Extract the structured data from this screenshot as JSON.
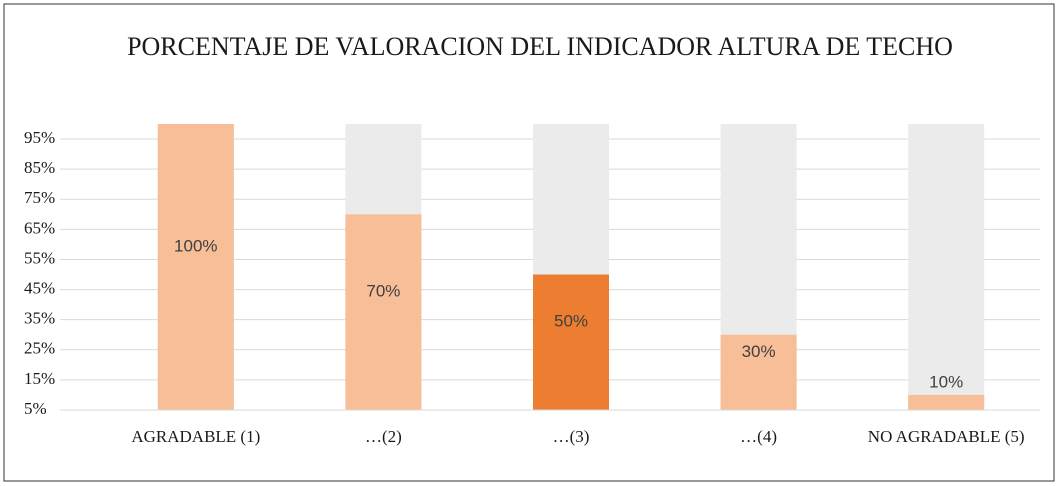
{
  "chart_data": {
    "type": "bar",
    "title": "PORCENTAJE DE VALORACION DEL INDICADOR ALTURA DE TECHO",
    "categories": [
      "AGRADABLE (1)",
      "…(2)",
      "…(3)",
      "…(4)",
      "NO AGRADABLE (5)"
    ],
    "values": [
      100,
      70,
      50,
      30,
      10
    ],
    "value_labels": [
      "100%",
      "70%",
      "50%",
      "30%",
      "10%"
    ],
    "colors": [
      "#f7be98",
      "#f7be98",
      "#ed7d31",
      "#f7be98",
      "#f7be98"
    ],
    "ylim": [
      5,
      100
    ],
    "yticks": [
      {
        "value": 5,
        "label": "5%"
      },
      {
        "value": 15,
        "label": "15%"
      },
      {
        "value": 25,
        "label": "25%"
      },
      {
        "value": 35,
        "label": "35%"
      },
      {
        "value": 45,
        "label": "45%"
      },
      {
        "value": 55,
        "label": "55%"
      },
      {
        "value": 65,
        "label": "65%"
      },
      {
        "value": 75,
        "label": "75%"
      },
      {
        "value": 85,
        "label": "85%"
      },
      {
        "value": 95,
        "label": "95%"
      }
    ],
    "grid": true
  }
}
